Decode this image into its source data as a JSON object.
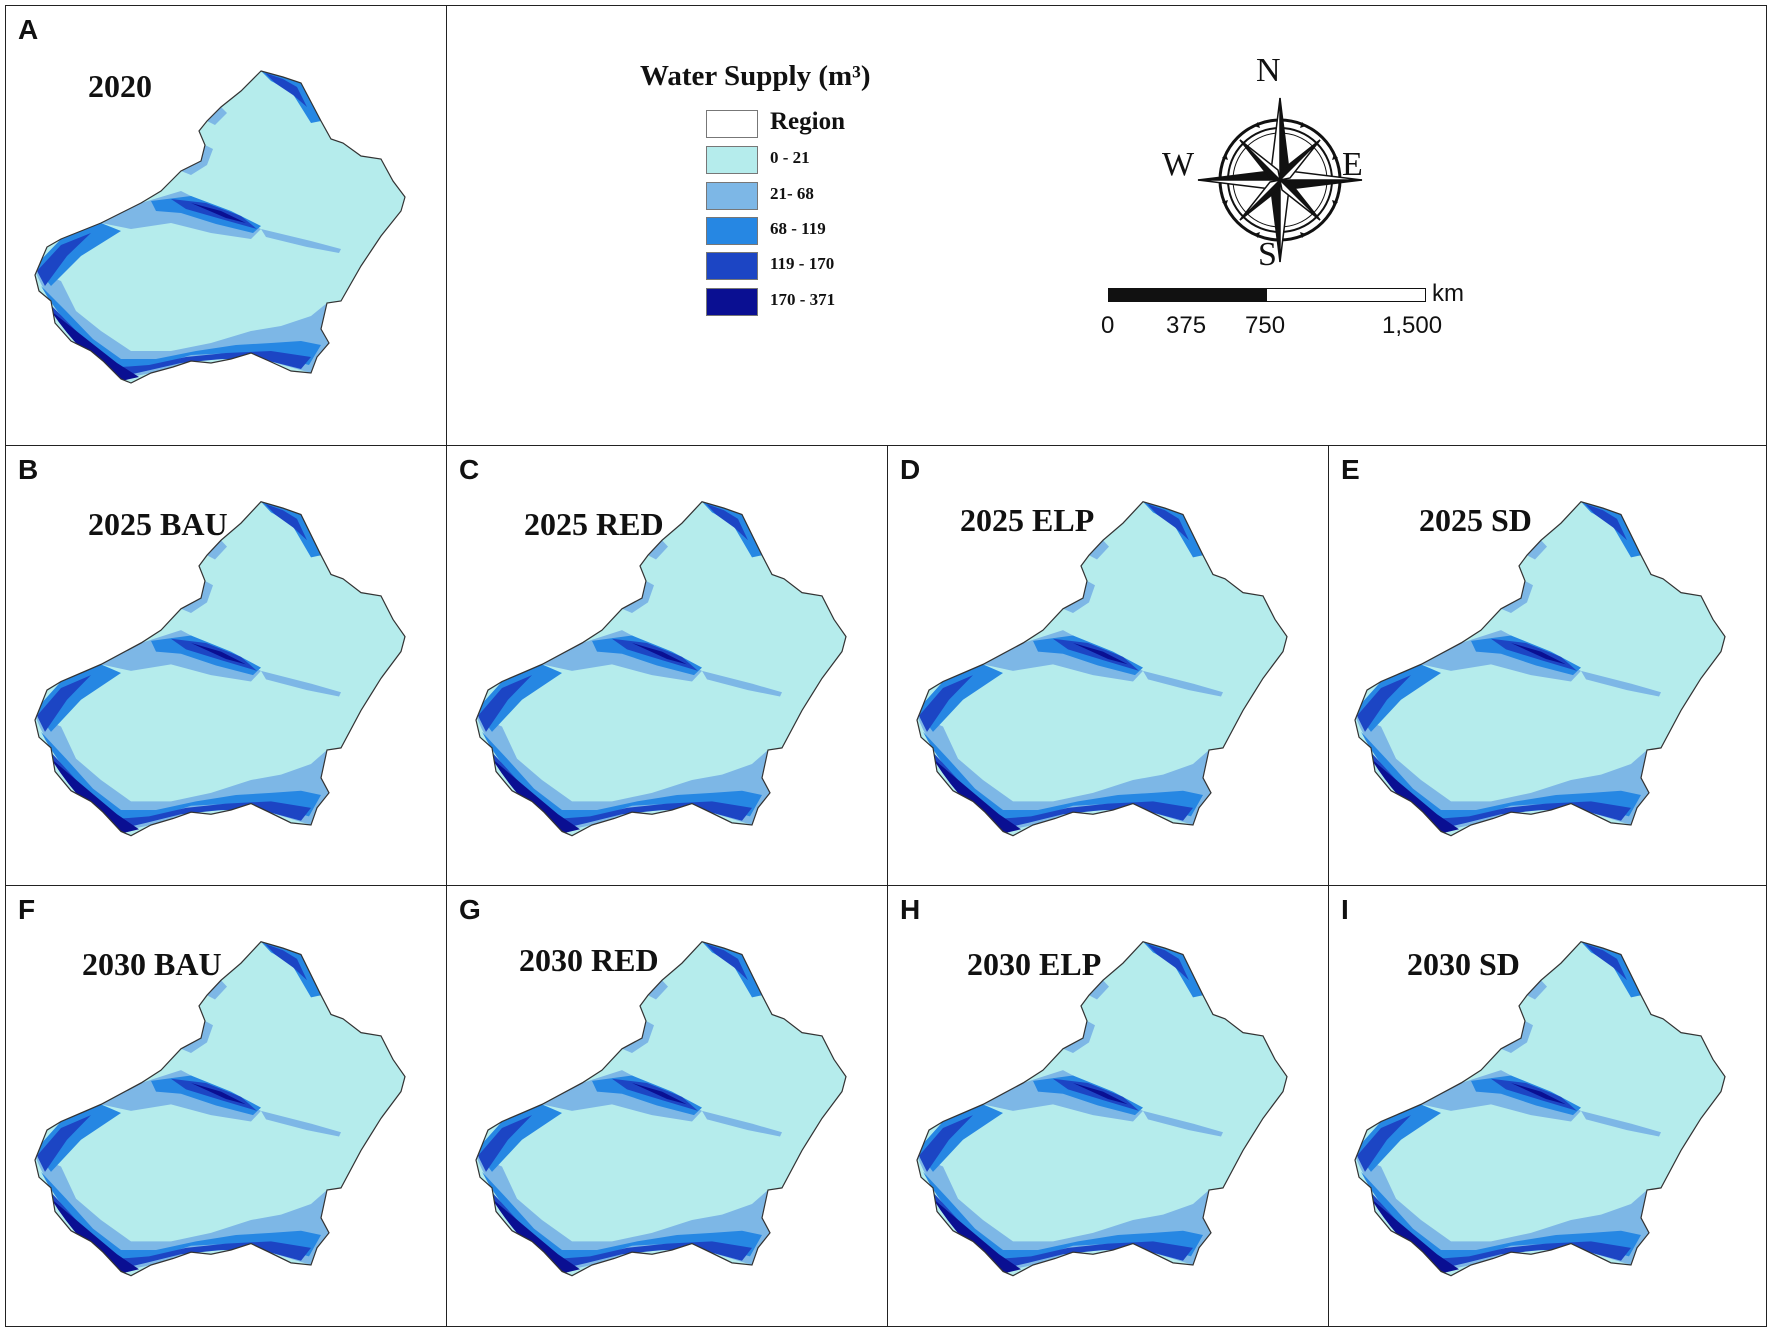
{
  "panels": [
    {
      "label": "A",
      "title": "2020"
    },
    {
      "label": "B",
      "title": "2025 BAU"
    },
    {
      "label": "C",
      "title": "2025 RED"
    },
    {
      "label": "D",
      "title": "2025 ELP"
    },
    {
      "label": "E",
      "title": "2025 SD"
    },
    {
      "label": "F",
      "title": "2030 BAU"
    },
    {
      "label": "G",
      "title": "2030 RED"
    },
    {
      "label": "H",
      "title": "2030 ELP"
    },
    {
      "label": "I",
      "title": "2030 SD"
    }
  ],
  "legend": {
    "title": "Water Supply (m³)",
    "items": [
      {
        "label": "Region",
        "color": "#ffffff"
      },
      {
        "label": "0 - 21",
        "color": "#b5ecec"
      },
      {
        "label": "21- 68",
        "color": "#7db7e6"
      },
      {
        "label": "68 - 119",
        "color": "#2687e3"
      },
      {
        "label": "119 - 170",
        "color": "#1c45c4"
      },
      {
        "label": "170 - 371",
        "color": "#0a0f92"
      }
    ]
  },
  "compass": {
    "north": "N",
    "south": "S",
    "east": "E",
    "west": "W"
  },
  "scale_bar": {
    "unit": "km",
    "ticks": [
      "0",
      "375",
      "750",
      "1,500"
    ]
  },
  "colors": {
    "land": "#b5ecec",
    "light": "#7db7e6",
    "mid": "#2687e3",
    "dark": "#1c45c4",
    "darkest": "#0a0f92",
    "border": "#333333"
  }
}
